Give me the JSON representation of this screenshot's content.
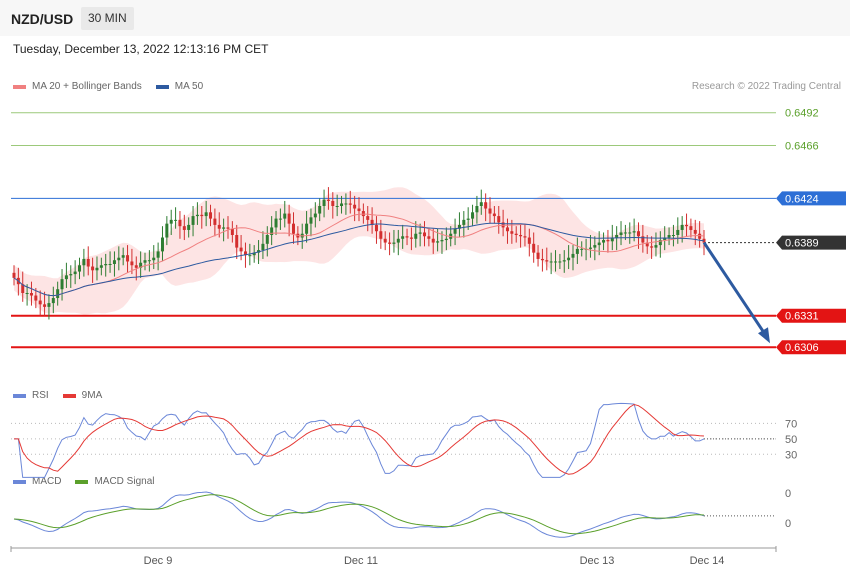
{
  "header": {
    "pair": "NZD/USD",
    "timeframe": "30 MIN",
    "datetime": "Tuesday, December 13, 2022 12:13:16 PM CET"
  },
  "legend": {
    "ma20": "MA 20 + Bollinger Bands",
    "ma50": "MA 50",
    "rsi": "RSI",
    "rsi_ma": "9MA",
    "macd": "MACD",
    "macd_signal": "MACD Signal"
  },
  "copyright": "Research © 2022 Trading Central",
  "colors": {
    "ma20": "#f08080",
    "ma50": "#2d5aa0",
    "bands": "#fde4e4",
    "up": "#2e7d32",
    "down": "#d32f2f",
    "rsi": "#6b87d8",
    "rsi_ma": "#e53935",
    "macd": "#6b87d8",
    "macd_signal": "#5ba02b",
    "resistance": "#9cc97a",
    "pivot": "#2d6fd6",
    "support": "#e31414",
    "current": "#333333"
  },
  "chart_data": [
    {
      "type": "candlestick",
      "title": "NZD/USD 30 MIN",
      "ylim": [
        0.628,
        0.651
      ],
      "x_ticks": [
        "Dec 9",
        "Dec 11",
        "Dec 13",
        "Dec 14"
      ],
      "levels": [
        {
          "label": "0.6492",
          "value": 0.6492,
          "kind": "resistance"
        },
        {
          "label": "0.6466",
          "value": 0.6466,
          "kind": "resistance"
        },
        {
          "label": "0.6424",
          "value": 0.6424,
          "kind": "pivot"
        },
        {
          "label": "0.6389",
          "value": 0.6389,
          "kind": "current"
        },
        {
          "label": "0.6331",
          "value": 0.6331,
          "kind": "support"
        },
        {
          "label": "0.6306",
          "value": 0.6306,
          "kind": "support"
        }
      ],
      "close": [
        0.6361,
        0.6356,
        0.6349,
        0.6349,
        0.6347,
        0.6343,
        0.634,
        0.6338,
        0.6341,
        0.6345,
        0.6352,
        0.636,
        0.6363,
        0.6364,
        0.6366,
        0.6371,
        0.6376,
        0.637,
        0.6367,
        0.6369,
        0.6371,
        0.6372,
        0.6372,
        0.6375,
        0.6377,
        0.6379,
        0.6374,
        0.6371,
        0.6369,
        0.6373,
        0.6375,
        0.6375,
        0.6377,
        0.6382,
        0.6393,
        0.6404,
        0.6407,
        0.6407,
        0.6402,
        0.6399,
        0.6403,
        0.641,
        0.6411,
        0.641,
        0.6413,
        0.6408,
        0.6403,
        0.64,
        0.6401,
        0.64,
        0.6395,
        0.6385,
        0.6382,
        0.6379,
        0.6379,
        0.6381,
        0.6383,
        0.6388,
        0.6395,
        0.6401,
        0.6408,
        0.6408,
        0.6412,
        0.6404,
        0.6396,
        0.6393,
        0.6396,
        0.6404,
        0.6409,
        0.6412,
        0.6418,
        0.6423,
        0.6422,
        0.6418,
        0.6418,
        0.642,
        0.642,
        0.6419,
        0.6416,
        0.6414,
        0.641,
        0.6407,
        0.6403,
        0.6398,
        0.6392,
        0.6389,
        0.6388,
        0.6389,
        0.6392,
        0.6394,
        0.6393,
        0.6392,
        0.6396,
        0.6397,
        0.6394,
        0.6392,
        0.6389,
        0.639,
        0.6391,
        0.6392,
        0.6396,
        0.64,
        0.6403,
        0.6407,
        0.6408,
        0.6413,
        0.6418,
        0.6421,
        0.6416,
        0.6412,
        0.641,
        0.6405,
        0.6401,
        0.6398,
        0.6396,
        0.6395,
        0.6394,
        0.6393,
        0.6388,
        0.6381,
        0.6376,
        0.6375,
        0.6374,
        0.6374,
        0.6374,
        0.6374,
        0.6375,
        0.6377,
        0.638,
        0.6384,
        0.6384,
        0.6384,
        0.6385,
        0.6387,
        0.6389,
        0.6391,
        0.639,
        0.6393,
        0.6395,
        0.6397,
        0.6397,
        0.6397,
        0.6398,
        0.6394,
        0.6389,
        0.6386,
        0.6385,
        0.6387,
        0.6391,
        0.6393,
        0.6395,
        0.6395,
        0.6399,
        0.6403,
        0.6402,
        0.6399,
        0.6396,
        0.6392,
        0.6389
      ]
    },
    {
      "type": "line",
      "title": "RSI",
      "y_ticks": [
        "70",
        "50",
        "30"
      ]
    },
    {
      "type": "line",
      "title": "MACD",
      "y_ticks": [
        "0",
        "0"
      ]
    }
  ]
}
